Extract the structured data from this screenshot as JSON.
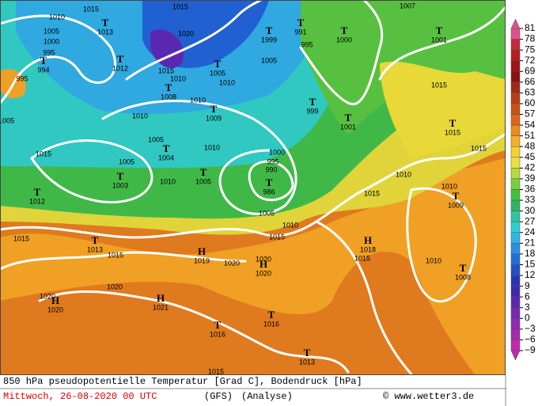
{
  "map": {
    "centers": [
      {
        "letter": "T",
        "pressure": "1013"
      },
      {
        "letter": "T",
        "pressure": "1012"
      },
      {
        "letter": "T",
        "pressure": "994"
      },
      {
        "letter": "T",
        "pressure": "1008"
      },
      {
        "letter": "T",
        "pressure": "1005"
      },
      {
        "letter": "T",
        "pressure": "1009"
      },
      {
        "letter": "T",
        "pressure": "1004"
      },
      {
        "letter": "T",
        "pressure": "1003"
      },
      {
        "letter": "T",
        "pressure": "1005"
      },
      {
        "letter": "T",
        "pressure": "1012"
      },
      {
        "letter": "T",
        "pressure": "986"
      },
      {
        "letter": "T",
        "pressure": "1999"
      },
      {
        "letter": "T",
        "pressure": "991"
      },
      {
        "letter": "T",
        "pressure": "1000"
      },
      {
        "letter": "T",
        "pressure": "1001"
      },
      {
        "letter": "T",
        "pressure": "999"
      },
      {
        "letter": "T",
        "pressure": "1001"
      },
      {
        "letter": "T",
        "pressure": "1015"
      },
      {
        "letter": "T",
        "pressure": "1009"
      },
      {
        "letter": "T",
        "pressure": "1013"
      },
      {
        "letter": "H",
        "pressure": "1019"
      },
      {
        "letter": "H",
        "pressure": "1018"
      },
      {
        "letter": "H",
        "pressure": "1020"
      },
      {
        "letter": "T",
        "pressure": "1008"
      },
      {
        "letter": "H",
        "pressure": "1020"
      },
      {
        "letter": "H",
        "pressure": "1021"
      },
      {
        "letter": "T",
        "pressure": "1016"
      },
      {
        "letter": "T",
        "pressure": "1016"
      },
      {
        "letter": "T",
        "pressure": "1013"
      }
    ],
    "isobar_labels": [
      "1010",
      "1015",
      "1015",
      "1005",
      "1000",
      "995",
      "1020",
      "1015",
      "1010",
      "1010",
      "1010",
      "1005",
      "995",
      "1005",
      "1010",
      "1015",
      "1005",
      "1010",
      "1010",
      "1000",
      "995",
      "990",
      "1005",
      "1010",
      "1015",
      "1015",
      "1010",
      "1010",
      "1015",
      "1015",
      "1007",
      "1015",
      "1015",
      "1020",
      "1020",
      "1015",
      "1010",
      "1020",
      "1020",
      "1015",
      "995",
      "1005"
    ]
  },
  "legend": {
    "ticks": [
      81,
      78,
      75,
      72,
      69,
      66,
      63,
      60,
      57,
      54,
      51,
      48,
      45,
      42,
      39,
      36,
      33,
      30,
      27,
      24,
      21,
      18,
      15,
      12,
      9,
      6,
      3,
      0,
      {
        "value": -3,
        "label": "−3"
      },
      {
        "value": -6,
        "label": "−6"
      },
      {
        "value": -9,
        "label": "−9"
      }
    ],
    "colors": [
      "#e0508c",
      "#c8283c",
      "#b41e1e",
      "#a01414",
      "#8c1010",
      "#a42814",
      "#b83c14",
      "#cc5014",
      "#e06414",
      "#ec8c1c",
      "#f4b028",
      "#f8d030",
      "#e8e040",
      "#b4dc3c",
      "#78d040",
      "#40c040",
      "#30b464",
      "#30c4a0",
      "#30d0d0",
      "#30b4e4",
      "#2890e0",
      "#2070d8",
      "#2050c8",
      "#2834b8",
      "#3c28b0",
      "#5a28b0",
      "#7828b0",
      "#9028b4",
      "#a828b0",
      "#c028b0"
    ]
  },
  "caption": {
    "line1": "850 hPa pseudopotentielle Temperatur [Grad C], Bodendruck [hPa]",
    "date": "Mittwoch, 26-08-2020  00 UTC",
    "model": "(GFS)",
    "analysis": "(Analyse)",
    "copyright": "© www.wetter3.de"
  }
}
